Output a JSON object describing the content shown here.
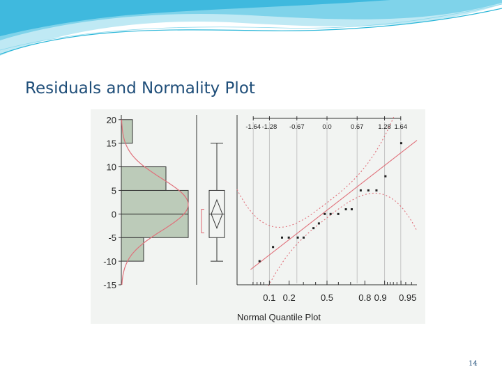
{
  "slide": {
    "title": "Residuals and Normality Plot",
    "page_number": "14"
  },
  "colors": {
    "title": "#1f4e79",
    "bar_fill": "#bccbb9",
    "curve": "#e0707a",
    "accent_wave": "#29b6d8"
  },
  "chart_data": [
    {
      "type": "bar",
      "orientation": "horizontal",
      "bin_edges": [
        -10,
        -5,
        0,
        5,
        10,
        15,
        20
      ],
      "values": [
        4,
        12,
        12,
        8,
        0,
        2
      ],
      "ylim": [
        -15,
        21
      ],
      "yticks": [
        "20",
        "15",
        "10",
        "5",
        "0",
        "-5",
        "-10",
        "-15"
      ],
      "overlay": "normal density curve"
    },
    {
      "type": "box",
      "min": -10,
      "q1": -5,
      "median": 0,
      "q3": 5,
      "max": 15,
      "mean": 0,
      "mean_ci": [
        -3,
        3
      ],
      "shortest_half": [
        -4,
        1
      ]
    },
    {
      "type": "scatter",
      "title": "Normal Quantile Plot",
      "top_axis_ticks": [
        {
          "label": "-1.64",
          "value": -1.64
        },
        {
          "label": "-1.28",
          "value": -1.28
        },
        {
          "label": "-0.67",
          "value": -0.67
        },
        {
          "label": "0.0",
          "value": 0.0
        },
        {
          "label": "0.67",
          "value": 0.67
        },
        {
          "label": "1.28",
          "value": 1.28
        },
        {
          "label": "1.64",
          "value": 1.64
        }
      ],
      "bottom_axis_ticks": [
        {
          "label": "0.1",
          "value": 0.1
        },
        {
          "label": "0.2",
          "value": 0.2
        },
        {
          "label": "0.5",
          "value": 0.5
        },
        {
          "label": "0.8",
          "value": 0.8
        },
        {
          "label": "0.9",
          "value": 0.9
        },
        {
          "label": "0.95",
          "value": 0.95
        }
      ],
      "xlim": [
        -2.0,
        2.0
      ],
      "ylim": [
        -15,
        21
      ],
      "points": [
        {
          "x": -1.5,
          "y": -10
        },
        {
          "x": -1.2,
          "y": -7
        },
        {
          "x": -1.0,
          "y": -5
        },
        {
          "x": -0.85,
          "y": -5
        },
        {
          "x": -0.65,
          "y": -5
        },
        {
          "x": -0.52,
          "y": -5
        },
        {
          "x": -0.3,
          "y": -3
        },
        {
          "x": -0.18,
          "y": -2
        },
        {
          "x": -0.05,
          "y": 0
        },
        {
          "x": 0.08,
          "y": 0
        },
        {
          "x": 0.25,
          "y": 0
        },
        {
          "x": 0.42,
          "y": 1
        },
        {
          "x": 0.55,
          "y": 1
        },
        {
          "x": 0.75,
          "y": 5
        },
        {
          "x": 0.92,
          "y": 5
        },
        {
          "x": 1.1,
          "y": 5
        },
        {
          "x": 1.3,
          "y": 8
        },
        {
          "x": 1.65,
          "y": 15
        }
      ],
      "fit_line": {
        "intercept": 0.8,
        "slope": 7.4
      },
      "confidence_bands": true
    }
  ]
}
